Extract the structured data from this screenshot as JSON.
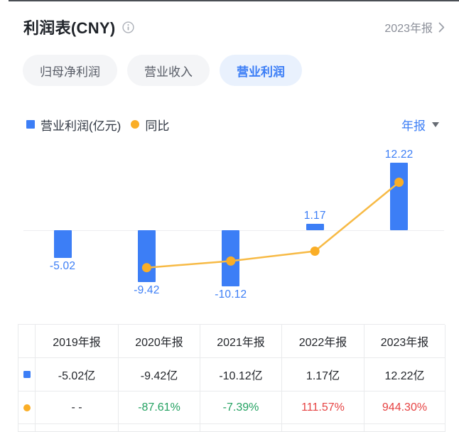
{
  "header": {
    "title": "利润表(CNY)",
    "period_label": "2023年报"
  },
  "tabs": [
    {
      "label": "归母净利润",
      "active": false
    },
    {
      "label": "营业收入",
      "active": false
    },
    {
      "label": "营业利润",
      "active": true
    }
  ],
  "legend": {
    "bar_series": "营业利润(亿元)",
    "line_series": "同比",
    "freq_dropdown": "年报"
  },
  "chart_data": {
    "type": "bar",
    "categories": [
      "2019年报",
      "2020年报",
      "2021年报",
      "2022年报",
      "2023年报"
    ],
    "series": [
      {
        "name": "营业利润(亿元)",
        "type": "bar",
        "unit": "亿元",
        "values": [
          -5.02,
          -9.42,
          -10.12,
          1.17,
          12.22
        ],
        "labels": [
          "-5.02",
          "-9.42",
          "-10.12",
          "1.17",
          "12.22"
        ],
        "color": "#3C7EF6"
      },
      {
        "name": "同比",
        "type": "line",
        "unit": "%",
        "values": [
          null,
          -87.61,
          -7.39,
          111.57,
          944.3
        ],
        "color": "#FAAE27"
      }
    ],
    "title": "",
    "xlabel": "",
    "ylabel": "",
    "axes_hidden": true,
    "grid": false,
    "legend_position": "top-left"
  },
  "table": {
    "headers": [
      "",
      "2019年报",
      "2020年报",
      "2021年报",
      "2022年报",
      "2023年报"
    ],
    "rows": [
      {
        "series": "营业利润",
        "swatch": "blue-square",
        "cells": [
          {
            "text": "-5.02亿",
            "style": "default"
          },
          {
            "text": "-9.42亿",
            "style": "default"
          },
          {
            "text": "-10.12亿",
            "style": "default"
          },
          {
            "text": "1.17亿",
            "style": "default"
          },
          {
            "text": "12.22亿",
            "style": "default"
          }
        ]
      },
      {
        "series": "同比",
        "swatch": "orange-dot",
        "cells": [
          {
            "text": "- -",
            "style": "default"
          },
          {
            "text": "-87.61%",
            "style": "green"
          },
          {
            "text": "-7.39%",
            "style": "green"
          },
          {
            "text": "111.57%",
            "style": "red"
          },
          {
            "text": "944.30%",
            "style": "red"
          }
        ]
      }
    ]
  },
  "colors": {
    "accent_blue": "#3C7EF6",
    "accent_blue_bg": "#E9F1FD",
    "orange": "#FAAE27",
    "line_orange": "#F7BA45",
    "green": "#23A161",
    "red": "#E64343",
    "text_dark": "#23262B",
    "text_gray": "#8B8F99",
    "border": "#E9EAEC"
  }
}
